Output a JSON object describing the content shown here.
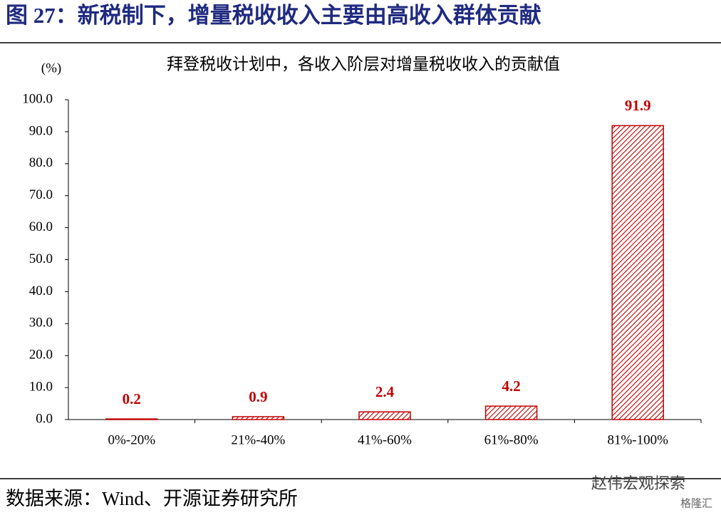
{
  "header": {
    "title": "图 27：新税制下，增量税收收入主要由高收入群体贡献"
  },
  "chart_data": {
    "type": "bar",
    "title": "拜登税收计划中，各收入阶层对增量税收收入的贡献值",
    "y_unit": "(%)",
    "categories": [
      "0%-20%",
      "21%-40%",
      "41%-60%",
      "61%-80%",
      "81%-100%"
    ],
    "values": [
      0.2,
      0.9,
      2.4,
      4.2,
      91.9
    ],
    "color": "#c00000",
    "ylim": [
      0,
      100
    ],
    "yticks": [
      {
        "value": 0,
        "label": "0.0"
      },
      {
        "value": 10,
        "label": "10.0"
      },
      {
        "value": 20,
        "label": "20.0"
      },
      {
        "value": 30,
        "label": "30.0"
      },
      {
        "value": 40,
        "label": "40.0"
      },
      {
        "value": 50,
        "label": "50.0"
      },
      {
        "value": 60,
        "label": "60.0"
      },
      {
        "value": 70,
        "label": "70.0"
      },
      {
        "value": 80,
        "label": "80.0"
      },
      {
        "value": 90,
        "label": "90.0"
      },
      {
        "value": 100,
        "label": "100.0"
      }
    ],
    "grid": false
  },
  "footer": {
    "source": "数据来源：Wind、开源证券研究所",
    "watermark": "赵伟宏观探索",
    "logo": "格隆汇"
  }
}
